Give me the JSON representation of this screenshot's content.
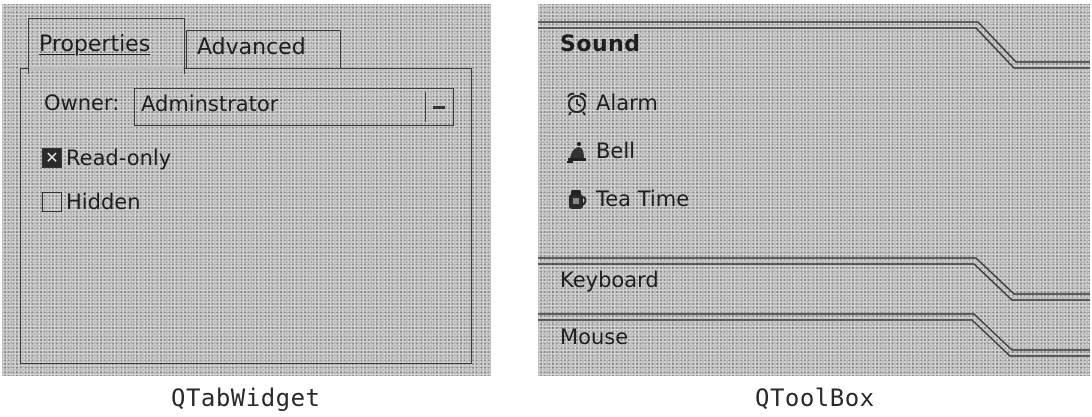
{
  "tab_widget": {
    "tabs": [
      {
        "label": "Properties",
        "active": true
      },
      {
        "label": "Advanced",
        "active": false
      }
    ],
    "owner_label": "Owner:",
    "owner_value": "Adminstrator",
    "checkboxes": [
      {
        "label": "Read-only",
        "checked": true
      },
      {
        "label": "Hidden",
        "checked": false
      }
    ],
    "caption": "QTabWidget"
  },
  "tool_box": {
    "sections": [
      {
        "label": "Sound",
        "expanded": true
      },
      {
        "label": "Keyboard",
        "expanded": false
      },
      {
        "label": "Mouse",
        "expanded": false
      }
    ],
    "sound_items": [
      {
        "label": "Alarm",
        "icon": "alarm-clock-icon"
      },
      {
        "label": "Bell",
        "icon": "bell-icon"
      },
      {
        "label": "Tea Time",
        "icon": "tea-pot-icon"
      }
    ],
    "caption": "QToolBox"
  }
}
